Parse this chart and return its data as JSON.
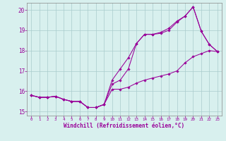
{
  "title": "",
  "xlabel": "Windchill (Refroidissement éolien,°C)",
  "background_color": "#d8f0ee",
  "line_color": "#990099",
  "grid_color": "#aacccc",
  "spine_color": "#888888",
  "xlim": [
    -0.5,
    23.5
  ],
  "ylim": [
    14.8,
    20.35
  ],
  "xticks": [
    0,
    1,
    2,
    3,
    4,
    5,
    6,
    7,
    8,
    9,
    10,
    11,
    12,
    13,
    14,
    15,
    16,
    17,
    18,
    19,
    20,
    21,
    22,
    23
  ],
  "yticks": [
    15,
    16,
    17,
    18,
    19,
    20
  ],
  "line1_x": [
    0,
    1,
    2,
    3,
    4,
    5,
    6,
    7,
    8,
    9,
    10,
    11,
    12,
    13,
    14,
    15,
    16,
    17,
    18,
    19,
    20,
    21,
    22,
    23
  ],
  "line1_y": [
    15.8,
    15.7,
    15.7,
    15.75,
    15.6,
    15.5,
    15.5,
    15.2,
    15.2,
    15.35,
    16.55,
    17.1,
    17.65,
    18.35,
    18.8,
    18.8,
    18.85,
    19.0,
    19.4,
    19.7,
    20.15,
    18.95,
    18.3,
    17.95
  ],
  "line2_x": [
    0,
    1,
    2,
    3,
    4,
    5,
    6,
    7,
    8,
    9,
    10,
    11,
    12,
    13,
    14,
    15,
    16,
    17,
    18,
    19,
    20,
    21,
    22,
    23
  ],
  "line2_y": [
    15.8,
    15.7,
    15.7,
    15.75,
    15.6,
    15.5,
    15.5,
    15.2,
    15.2,
    15.35,
    16.1,
    16.1,
    16.2,
    16.4,
    16.55,
    16.65,
    16.75,
    16.85,
    17.0,
    17.4,
    17.7,
    17.85,
    18.0,
    17.95
  ],
  "line3_x": [
    0,
    1,
    2,
    3,
    4,
    5,
    6,
    7,
    8,
    9,
    10,
    11,
    12,
    13,
    14,
    15,
    16,
    17,
    18,
    19,
    20,
    21,
    22,
    23
  ],
  "line3_y": [
    15.8,
    15.7,
    15.7,
    15.75,
    15.6,
    15.5,
    15.5,
    15.2,
    15.2,
    15.35,
    16.35,
    16.55,
    17.1,
    18.35,
    18.8,
    18.8,
    18.9,
    19.1,
    19.45,
    19.7,
    20.15,
    18.95,
    18.3,
    17.95
  ]
}
